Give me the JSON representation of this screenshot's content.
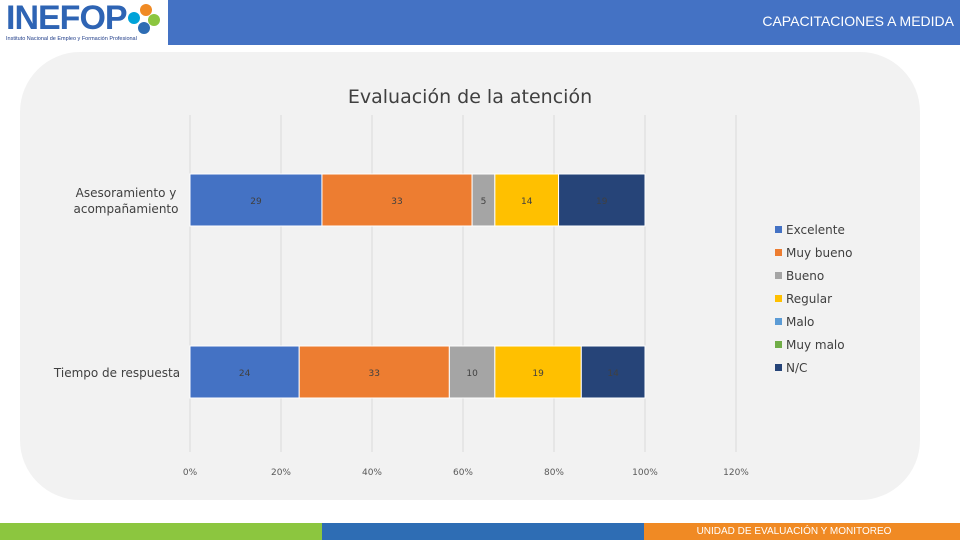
{
  "header": {
    "logo_text": "INEFOP",
    "logo_subtitle": "Instituto Nacional de Empleo y Formación Profesional",
    "title": "CAPACITACIONES A MEDIDA"
  },
  "footer": {
    "text": "UNIDAD DE EVALUACIÓN Y MONITOREO"
  },
  "colors": {
    "header_blue": "#4472c4",
    "excelente": "#4472c4",
    "muy_bueno": "#ed7d31",
    "bueno": "#a5a5a5",
    "regular": "#ffc000",
    "malo": "#5b9bd5",
    "muy_malo": "#70ad47",
    "nc": "#264478"
  },
  "chart_data": {
    "type": "bar",
    "orientation": "horizontal",
    "stacked": true,
    "title": "Evaluación de la atención",
    "categories": [
      "Asesoramiento y acompañamiento",
      "Tiempo de respuesta"
    ],
    "series": [
      {
        "name": "Excelente",
        "color": "#4472c4",
        "values": [
          29,
          24
        ]
      },
      {
        "name": "Muy bueno",
        "color": "#ed7d31",
        "values": [
          33,
          33
        ]
      },
      {
        "name": "Bueno",
        "color": "#a5a5a5",
        "values": [
          5,
          10
        ]
      },
      {
        "name": "Regular",
        "color": "#ffc000",
        "values": [
          14,
          19
        ]
      },
      {
        "name": "Malo",
        "color": "#5b9bd5",
        "values": [
          0,
          0
        ]
      },
      {
        "name": "Muy malo",
        "color": "#70ad47",
        "values": [
          0,
          0
        ]
      },
      {
        "name": "N/C",
        "color": "#264478",
        "values": [
          19,
          14
        ]
      }
    ],
    "x_ticks": [
      "0%",
      "20%",
      "40%",
      "60%",
      "80%",
      "100%",
      "120%"
    ],
    "xlim": [
      0,
      120
    ],
    "legend_position": "right",
    "grid": true
  }
}
